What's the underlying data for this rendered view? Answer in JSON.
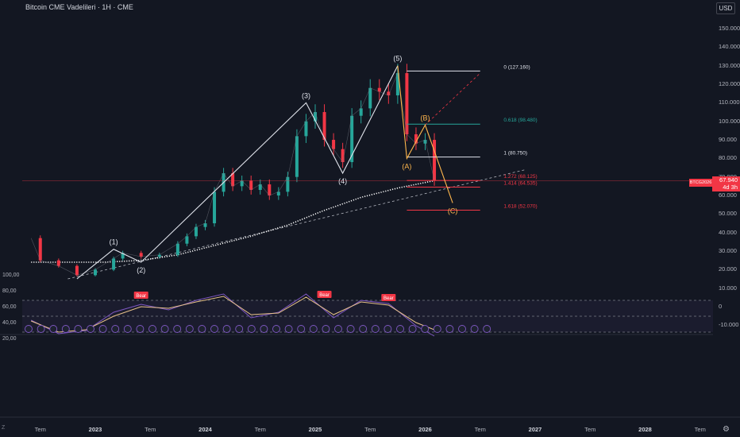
{
  "header": {
    "title": "Bitcoin CME Vadelileri · 1H · CME",
    "currency": "USD"
  },
  "last_price": {
    "symbol": "BTCG2026",
    "value": "67.940",
    "countdown": "4d 3h"
  },
  "colors": {
    "background": "#131722",
    "up": "#26a69a",
    "down": "#f23645",
    "wave": "#e0e3eb",
    "correction": "#ffb74d",
    "rsi": "#7e57c2",
    "rsi_ma": "#e8c28a",
    "fib_top": "#e0e3eb",
    "fib_618": "#26a69a",
    "fib_ext": "#f23645"
  },
  "chart_data": [
    {
      "type": "line",
      "title": "Bitcoin CME Vadelileri · 1H · CME",
      "y_axis_ticks": [
        "150.000",
        "140.000",
        "130.000",
        "120.000",
        "110.000",
        "100.000",
        "90.000",
        "80.000",
        "70.000",
        "60.000",
        "50.000",
        "40.000",
        "30.000",
        "20.000",
        "10.000",
        "0",
        "-10.000"
      ],
      "x_axis_ticks": [
        "Tem",
        "2023",
        "Tem",
        "2024",
        "Tem",
        "2025",
        "Tem",
        "2026",
        "Tem",
        "2027",
        "Tem",
        "2028",
        "Tem"
      ],
      "ylim": [
        -10000,
        150000
      ],
      "grid": false,
      "price_path": {
        "x": [
          "2022-06",
          "2022-07",
          "2022-09",
          "2022-11",
          "2023-01",
          "2023-03",
          "2023-04",
          "2023-06",
          "2023-08",
          "2023-10",
          "2023-11",
          "2023-12",
          "2024-01",
          "2024-02",
          "2024-03",
          "2024-04",
          "2024-05",
          "2024-06",
          "2024-07",
          "2024-08",
          "2024-09",
          "2024-10",
          "2024-11",
          "2024-12",
          "2025-01",
          "2025-02",
          "2025-03",
          "2025-04",
          "2025-05",
          "2025-06",
          "2025-07",
          "2025-08",
          "2025-09",
          "2025-10",
          "2025-11",
          "2025-12",
          "2026-01",
          "2026-02"
        ],
        "y": [
          37000,
          25000,
          22000,
          17000,
          20000,
          26000,
          29000,
          27000,
          28000,
          34000,
          38000,
          43000,
          45000,
          62000,
          72000,
          65000,
          68000,
          63000,
          66000,
          60000,
          62000,
          70000,
          92000,
          100000,
          105000,
          90000,
          85000,
          78000,
          103000,
          107000,
          118000,
          116000,
          114000,
          126000,
          93000,
          88000,
          90000,
          67940
        ]
      },
      "ma_path": {
        "x": [
          "2022-06",
          "2022-10",
          "2023-02",
          "2023-06",
          "2023-10",
          "2024-02",
          "2024-06",
          "2024-10",
          "2025-02",
          "2025-06",
          "2025-10",
          "2026-01",
          "2026-02"
        ],
        "y": [
          24000,
          24000,
          24000,
          25000,
          28000,
          33000,
          38000,
          44000,
          52000,
          59000,
          64000,
          67000,
          68000
        ]
      },
      "elliott_waves": [
        {
          "label": "(1)",
          "x": "2023-03",
          "y": 31000
        },
        {
          "label": "(2)",
          "x": "2023-06",
          "y": 24000
        },
        {
          "label": "(3)",
          "x": "2024-12",
          "y": 110000
        },
        {
          "label": "(4)",
          "x": "2025-04",
          "y": 72000
        },
        {
          "label": "(5)",
          "x": "2025-10",
          "y": 130000
        },
        {
          "label": "(A)",
          "x": "2025-11",
          "y": 80000
        },
        {
          "label": "(B)",
          "x": "2026-01",
          "y": 98000
        },
        {
          "label": "(C)",
          "x": "2026-04",
          "y": 56000
        }
      ],
      "fib_levels": [
        {
          "label": "0 (127.160)",
          "value": 127160
        },
        {
          "label": "0.618 (98.480)",
          "value": 98480
        },
        {
          "label": "1 (80.750)",
          "value": 80750
        },
        {
          "label": "1.272 (68.125)",
          "value": 68125
        },
        {
          "label": "1.414 (64.535)",
          "value": 64535
        },
        {
          "label": "1.618 (52.070)",
          "value": 52070
        }
      ]
    },
    {
      "type": "line",
      "title": "RSI",
      "y_axis_ticks": [
        "100,00",
        "80,00",
        "60,00",
        "40,00",
        "20,00"
      ],
      "ylim": [
        20,
        100
      ],
      "bands": [
        70,
        50,
        30
      ],
      "divergence_labels": [
        "Bear",
        "Bear",
        "Bear"
      ],
      "rsi": {
        "x": [
          "2022-06",
          "2022-09",
          "2022-12",
          "2023-03",
          "2023-06",
          "2023-09",
          "2023-12",
          "2024-03",
          "2024-06",
          "2024-09",
          "2024-12",
          "2025-03",
          "2025-06",
          "2025-09",
          "2025-12",
          "2026-02"
        ],
        "y": [
          45,
          28,
          32,
          55,
          65,
          58,
          70,
          78,
          48,
          55,
          78,
          48,
          70,
          66,
          38,
          25
        ]
      },
      "rsi_ma": {
        "x": [
          "2022-06",
          "2022-09",
          "2022-12",
          "2023-03",
          "2023-06",
          "2023-09",
          "2023-12",
          "2024-03",
          "2024-06",
          "2024-09",
          "2024-12",
          "2025-03",
          "2025-06",
          "2025-09",
          "2025-12",
          "2026-02"
        ],
        "y": [
          44,
          30,
          33,
          50,
          62,
          60,
          68,
          75,
          52,
          54,
          74,
          52,
          68,
          64,
          42,
          33
        ]
      }
    }
  ]
}
